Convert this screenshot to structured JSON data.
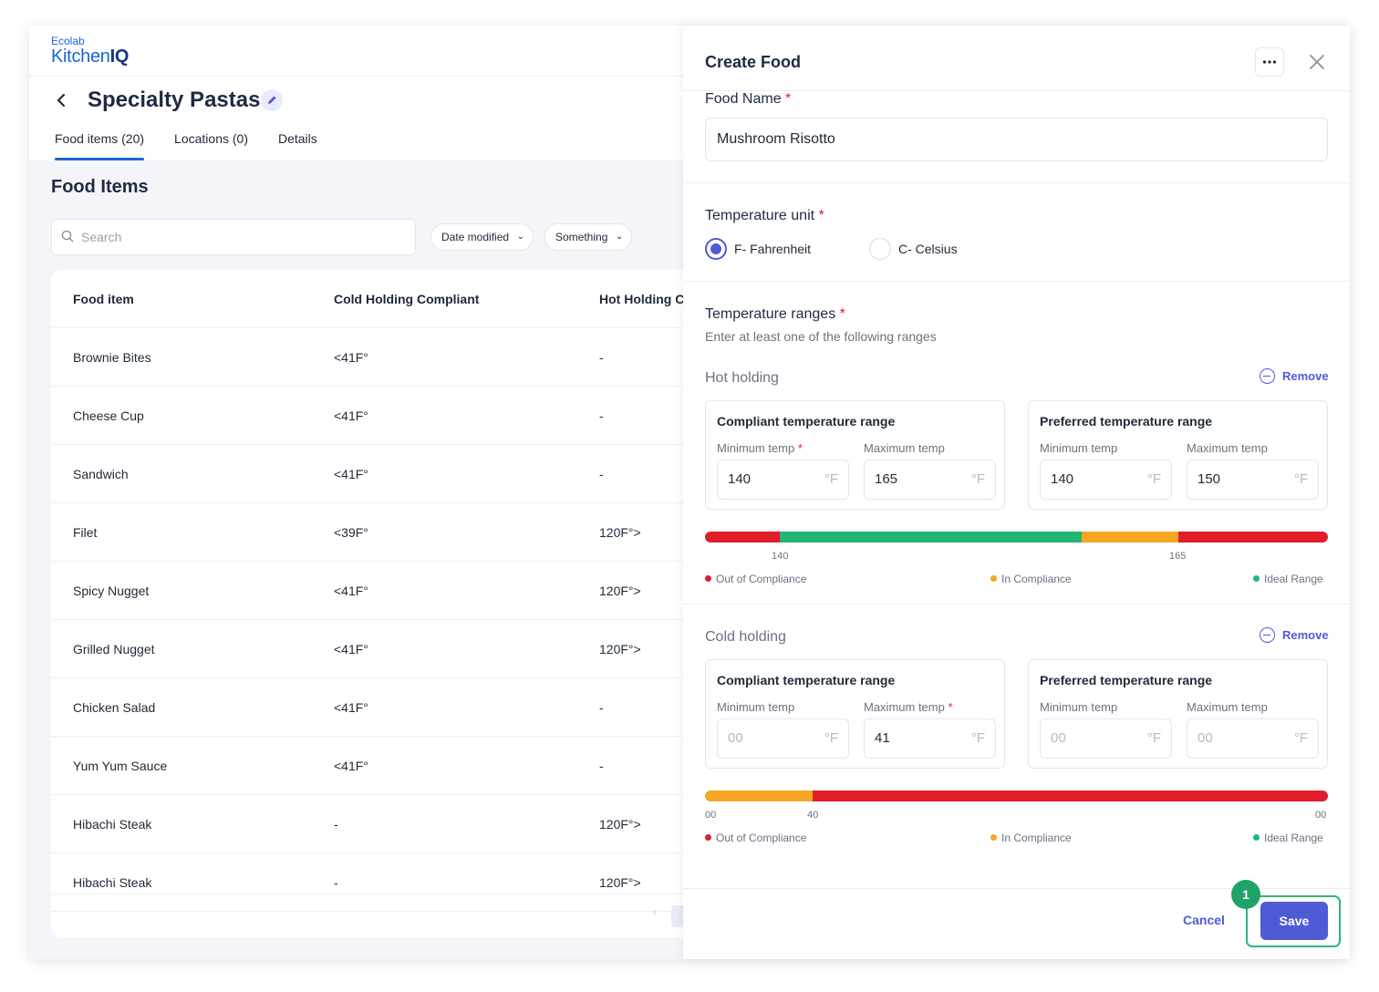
{
  "brand": {
    "small": "Ecolab",
    "name_regular": "Kitchen",
    "name_bold": "IQ"
  },
  "header": {
    "title": "Specialty Pastas",
    "tabs": [
      {
        "label": "Food items (20)",
        "active": true
      },
      {
        "label": "Locations (0)",
        "active": false
      },
      {
        "label": "Details",
        "active": false
      }
    ]
  },
  "food_items": {
    "title": "Food Items",
    "search_placeholder": "Search",
    "filters": [
      "Date modified",
      "Something"
    ],
    "columns": [
      "Food item",
      "Cold Holding Compliant",
      "Hot Holding Co"
    ],
    "rows": [
      {
        "name": "Brownie Bites",
        "cold": "<41F°",
        "hot": "-"
      },
      {
        "name": "Cheese Cup",
        "cold": "<41F°",
        "hot": "-"
      },
      {
        "name": "Sandwich",
        "cold": "<41F°",
        "hot": "-"
      },
      {
        "name": "Filet",
        "cold": "<39F°",
        "hot": "120F°>"
      },
      {
        "name": "Spicy Nugget",
        "cold": "<41F°",
        "hot": "120F°>"
      },
      {
        "name": "Grilled Nugget",
        "cold": "<41F°",
        "hot": "120F°>"
      },
      {
        "name": "Chicken Salad",
        "cold": "<41F°",
        "hot": "-"
      },
      {
        "name": "Yum Yum Sauce",
        "cold": "<41F°",
        "hot": "-"
      },
      {
        "name": "Hibachi Steak",
        "cold": "-",
        "hot": "120F°>"
      },
      {
        "name": "Hibachi Steak",
        "cold": "-",
        "hot": "120F°>"
      }
    ]
  },
  "drawer": {
    "title": "Create Food",
    "food_name_label": "Food Name",
    "food_name_value": "Mushroom Risotto",
    "required_mark": "*",
    "temp_unit_label": "Temperature unit",
    "unit_options": [
      {
        "label": "F- Fahrenheit",
        "selected": true
      },
      {
        "label": "C- Celsius",
        "selected": false
      }
    ],
    "temp_ranges_label": "Temperature ranges",
    "temp_ranges_hint": "Enter at least one of the following ranges",
    "remove_label": "Remove",
    "compliant_title": "Compliant temperature range",
    "preferred_title": "Preferred temperature range",
    "min_label": "Minimum temp",
    "max_label": "Maximum temp",
    "unit_suffix": "°F",
    "hot": {
      "title": "Hot holding",
      "compliant_min": "140",
      "compliant_max": "165",
      "preferred_min": "140",
      "preferred_max": "150",
      "scale_labels": [
        "140",
        "165"
      ],
      "segments": [
        {
          "status": "out",
          "fraction": 0.12
        },
        {
          "status": "ideal",
          "fraction": 0.485
        },
        {
          "status": "in",
          "fraction": 0.155
        },
        {
          "status": "out",
          "fraction": 0.24
        }
      ]
    },
    "cold": {
      "title": "Cold holding",
      "compliant_min_placeholder": "00",
      "compliant_max": "41",
      "preferred_min_placeholder": "00",
      "preferred_max_placeholder": "00",
      "scale_labels": [
        "00",
        "40",
        "00"
      ],
      "segments": [
        {
          "status": "in",
          "fraction": 0.173
        },
        {
          "status": "out",
          "fraction": 0.827
        }
      ]
    },
    "legend": [
      {
        "label": "Out of Compliance",
        "color": "#e11d2a"
      },
      {
        "label": "In Compliance",
        "color": "#f5a623"
      },
      {
        "label": "Ideal Range",
        "color": "#22b573"
      }
    ],
    "cancel_label": "Cancel",
    "save_label": "Save"
  },
  "colors": {
    "out": "#e11d2a",
    "in": "#f5a623",
    "ideal": "#22b573",
    "accent": "#4f5bd5"
  },
  "step_badge": "1"
}
